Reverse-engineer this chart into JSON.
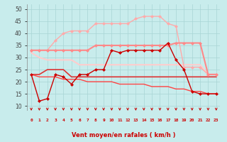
{
  "bg_color": "#c8ecec",
  "grid_color": "#a8d4d4",
  "xlabel": "Vent moyen/en rafales ( km/h )",
  "ylim": [
    8,
    52
  ],
  "yticks": [
    10,
    15,
    20,
    25,
    30,
    35,
    40,
    45,
    50
  ],
  "xlim": [
    -0.5,
    23.5
  ],
  "x_ticks": [
    0,
    1,
    2,
    3,
    4,
    5,
    6,
    7,
    8,
    9,
    10,
    11,
    12,
    13,
    14,
    15,
    16,
    17,
    18,
    19,
    20,
    21,
    22,
    23
  ],
  "lines": [
    {
      "x": [
        0,
        1,
        2,
        3,
        4,
        5,
        6,
        7,
        8,
        9,
        10,
        11,
        12,
        13,
        14,
        15,
        16,
        17,
        18,
        19,
        20,
        21,
        22,
        23
      ],
      "y": [
        23,
        12,
        13,
        23,
        22,
        19,
        23,
        23,
        25,
        25,
        33,
        32,
        33,
        33,
        33,
        33,
        33,
        36,
        29,
        25,
        16,
        15,
        15,
        15
      ],
      "color": "#cc0000",
      "lw": 1.0,
      "marker": "D",
      "ms": 2.0,
      "zorder": 5
    },
    {
      "x": [
        0,
        1,
        2,
        3,
        4,
        5,
        6,
        7,
        8,
        9,
        10,
        11,
        12,
        13,
        14,
        15,
        16,
        17,
        18,
        19,
        20,
        21,
        22,
        23
      ],
      "y": [
        33,
        33,
        33,
        37,
        40,
        41,
        41,
        41,
        44,
        44,
        44,
        44,
        44,
        46,
        47,
        47,
        47,
        44,
        43,
        26,
        26,
        26,
        23,
        23
      ],
      "color": "#ffaaaa",
      "lw": 1.0,
      "marker": "D",
      "ms": 2.0,
      "zorder": 3
    },
    {
      "x": [
        0,
        1,
        2,
        3,
        4,
        5,
        6,
        7,
        8,
        9,
        10,
        11,
        12,
        13,
        14,
        15,
        16,
        17,
        18,
        19,
        20,
        21,
        22,
        23
      ],
      "y": [
        33,
        33,
        33,
        33,
        33,
        33,
        33,
        33,
        35,
        35,
        35,
        35,
        35,
        35,
        35,
        35,
        35,
        35,
        36,
        36,
        36,
        36,
        23,
        23
      ],
      "color": "#ff8888",
      "lw": 1.5,
      "marker": "D",
      "ms": 2.0,
      "zorder": 4
    },
    {
      "x": [
        0,
        1,
        2,
        3,
        4,
        5,
        6,
        7,
        8,
        9,
        10,
        11,
        12,
        13,
        14,
        15,
        16,
        17,
        18,
        19,
        20,
        21,
        22,
        23
      ],
      "y": [
        32,
        30,
        29,
        29,
        29,
        29,
        27,
        27,
        27,
        27,
        27,
        27,
        27,
        27,
        27,
        27,
        27,
        27,
        27,
        27,
        27,
        27,
        23,
        23
      ],
      "color": "#ffcccc",
      "lw": 1.5,
      "marker": null,
      "ms": 0,
      "zorder": 2
    },
    {
      "x": [
        0,
        1,
        2,
        3,
        4,
        5,
        6,
        7,
        8,
        9,
        10,
        11,
        12,
        13,
        14,
        15,
        16,
        17,
        18,
        19,
        20,
        21,
        22,
        23
      ],
      "y": [
        23,
        23,
        25,
        25,
        25,
        22,
        22,
        22,
        22,
        22,
        22,
        22,
        22,
        22,
        22,
        22,
        22,
        22,
        22,
        22,
        22,
        22,
        22,
        22
      ],
      "color": "#dd3333",
      "lw": 1.2,
      "marker": null,
      "ms": 0,
      "zorder": 2
    },
    {
      "x": [
        0,
        1,
        2,
        3,
        4,
        5,
        6,
        7,
        8,
        9,
        10,
        11,
        12,
        13,
        14,
        15,
        16,
        17,
        18,
        19,
        20,
        21,
        22,
        23
      ],
      "y": [
        23,
        22,
        22,
        22,
        21,
        21,
        21,
        20,
        20,
        20,
        20,
        19,
        19,
        19,
        19,
        18,
        18,
        18,
        17,
        17,
        16,
        16,
        15,
        15
      ],
      "color": "#ff4444",
      "lw": 1.0,
      "marker": null,
      "ms": 0,
      "zorder": 2
    }
  ],
  "arrow_color": "#cc0000",
  "tick_color": "#cc0000",
  "xlabel_color": "#cc0000"
}
